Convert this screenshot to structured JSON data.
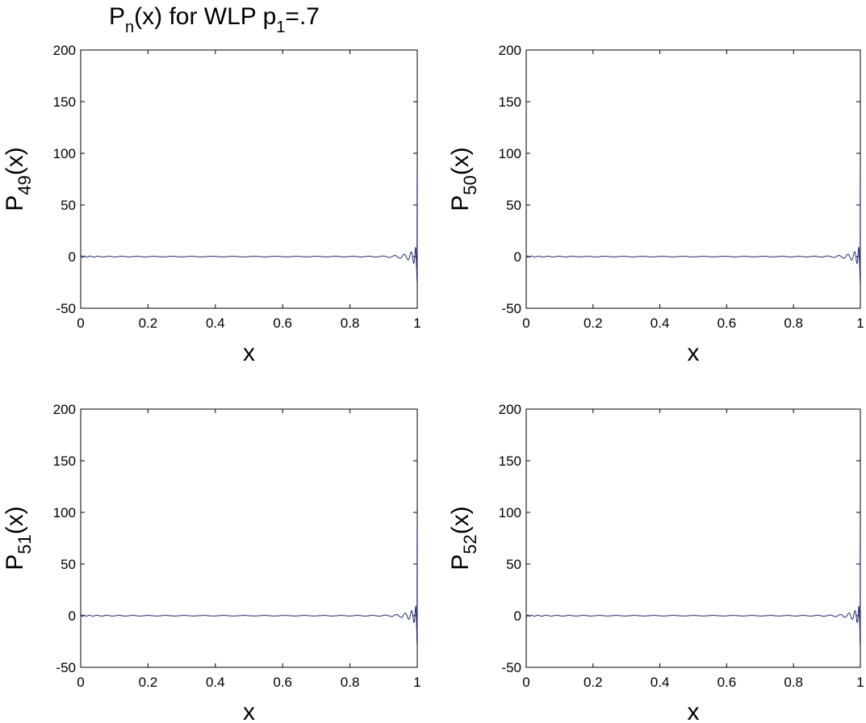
{
  "figure": {
    "title_main": "P",
    "title_sub": "n",
    "title_rest": "(x) for WLP p",
    "title_sub2": "1",
    "title_end": "=.7"
  },
  "chart_data": [
    {
      "type": "line",
      "xlabel": "x",
      "ylabel_main": "P",
      "ylabel_sub": "49",
      "ylabel_end": "(x)",
      "xlim": [
        0,
        1
      ],
      "ylim": [
        -50,
        200
      ],
      "xticks": [
        "0",
        "0.2",
        "0.4",
        "0.6",
        "0.8",
        "1"
      ],
      "yticks": [
        "-50",
        "0",
        "50",
        "100",
        "150",
        "200"
      ],
      "n": 49,
      "series_color": "#1f2b6e",
      "endpoint_max": 82,
      "endpoint_min": -24
    },
    {
      "type": "line",
      "xlabel": "x",
      "ylabel_main": "P",
      "ylabel_sub": "50",
      "ylabel_end": "(x)",
      "xlim": [
        0,
        1
      ],
      "ylim": [
        -50,
        200
      ],
      "xticks": [
        "0",
        "0.2",
        "0.4",
        "0.6",
        "0.8",
        "1"
      ],
      "yticks": [
        "-50",
        "0",
        "50",
        "100",
        "150",
        "200"
      ],
      "n": 50,
      "series_color": "#1f2b6e",
      "endpoint_max": 83,
      "endpoint_min": -24
    },
    {
      "type": "line",
      "xlabel": "x",
      "ylabel_main": "P",
      "ylabel_sub": "51",
      "ylabel_end": "(x)",
      "xlim": [
        0,
        1
      ],
      "ylim": [
        -50,
        200
      ],
      "xticks": [
        "0",
        "0.2",
        "0.4",
        "0.6",
        "0.8",
        "1"
      ],
      "yticks": [
        "-50",
        "0",
        "50",
        "100",
        "150",
        "200"
      ],
      "n": 51,
      "series_color": "#1f2b6e",
      "endpoint_max": 84,
      "endpoint_min": -27
    },
    {
      "type": "line",
      "xlabel": "x",
      "ylabel_main": "P",
      "ylabel_sub": "52",
      "ylabel_end": "(x)",
      "xlim": [
        0,
        1
      ],
      "ylim": [
        -50,
        200
      ],
      "xticks": [
        "0",
        "0.2",
        "0.4",
        "0.6",
        "0.8",
        "1"
      ],
      "yticks": [
        "-50",
        "0",
        "50",
        "100",
        "150",
        "200"
      ],
      "n": 52,
      "series_color": "#1f2b6e",
      "endpoint_max": 88,
      "endpoint_min": -28
    }
  ]
}
